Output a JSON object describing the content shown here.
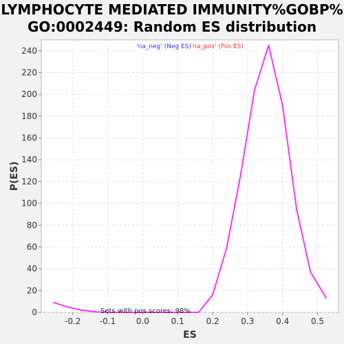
{
  "title_line1": "LYMPHOCYTE MEDIATED IMMUNITY%GOBP%",
  "title_line2": "GO:0002449: Random ES distribution",
  "chart_data": {
    "type": "line",
    "xlabel": "ES",
    "ylabel": "P(ES)",
    "xlim": [
      -0.29,
      0.56
    ],
    "ylim": [
      0,
      250
    ],
    "x_ticks": [
      "-0.2",
      "-0.1",
      "0.0",
      "0.1",
      "0.2",
      "0.3",
      "0.4",
      "0.5"
    ],
    "x_tick_values": [
      -0.2,
      -0.1,
      0.0,
      0.1,
      0.2,
      0.3,
      0.4,
      0.5
    ],
    "y_ticks": [
      "0",
      "20",
      "40",
      "60",
      "80",
      "100",
      "120",
      "140",
      "160",
      "180",
      "200",
      "220",
      "240"
    ],
    "y_tick_values": [
      0,
      20,
      40,
      60,
      80,
      100,
      120,
      140,
      160,
      180,
      200,
      220,
      240
    ],
    "grid": true,
    "legend_placement": "top-center",
    "legend": [
      {
        "text": "'na_neg' (Neg ES)",
        "color": "#3333ff"
      },
      {
        "text": "'na_pos' (Pos ES)",
        "color": "#ff3333"
      }
    ],
    "annotation": "Sets with pos scores: 98%",
    "series": [
      {
        "color": "#ff33ff",
        "x": [
          -0.255,
          -0.215,
          -0.175,
          -0.135,
          -0.095,
          -0.055,
          -0.015,
          0.025,
          0.065,
          0.105,
          0.16,
          0.2,
          0.24,
          0.28,
          0.32,
          0.36,
          0.4,
          0.44,
          0.48,
          0.525
        ],
        "y": [
          9,
          5,
          2,
          0.5,
          0,
          0,
          0,
          0,
          0,
          0,
          0,
          16,
          59,
          126,
          204,
          245,
          190,
          95,
          37,
          13
        ]
      }
    ]
  }
}
